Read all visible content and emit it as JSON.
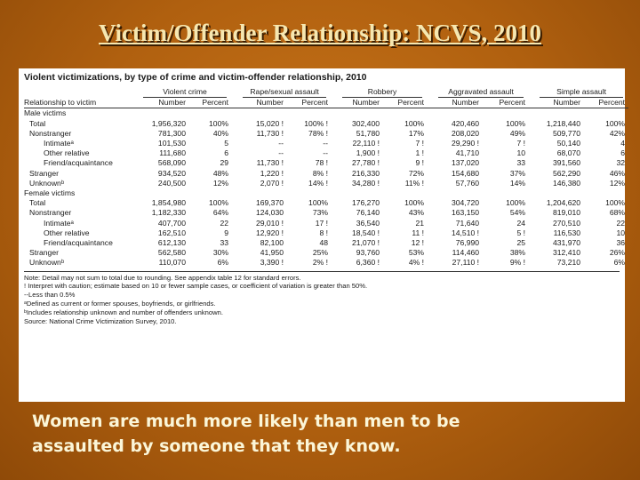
{
  "slide": {
    "title": "Victim/Offender Relationship: NCVS, 2010",
    "caption_line1": "Women are much more likely than men to be",
    "caption_line2": "assaulted by someone that they know."
  },
  "table": {
    "title": "Violent victimizations, by type of crime and victim-offender relationship, 2010",
    "groups": [
      "Violent crime",
      "Rape/sexual assault",
      "Robbery",
      "Aggravated assault",
      "Simple assault"
    ],
    "rel_header": "Relationship to victim",
    "number_label": "Number",
    "percent_label": "Percent",
    "male_label": "Male victims",
    "female_label": "Female victims",
    "male_rows": [
      {
        "label": "Total",
        "indent": 1,
        "cells": [
          "1,956,320",
          "100%",
          "15,020 !",
          "100% !",
          "302,400",
          "100%",
          "420,460",
          "100%",
          "1,218,440",
          "100%"
        ]
      },
      {
        "label": "Nonstranger",
        "indent": 1,
        "cells": [
          "781,300",
          "40%",
          "11,730 !",
          "78% !",
          "51,780",
          "17%",
          "208,020",
          "49%",
          "509,770",
          "42%"
        ]
      },
      {
        "label": "Intimateᵃ",
        "indent": 2,
        "cells": [
          "101,530",
          "5",
          "--",
          "--",
          "22,110 !",
          "7 !",
          "29,290 !",
          "7 !",
          "50,140",
          "4"
        ]
      },
      {
        "label": "Other relative",
        "indent": 2,
        "cells": [
          "111,680",
          "6",
          "--",
          "--",
          "1,900 !",
          "1 !",
          "41,710",
          "10",
          "68,070",
          "6"
        ]
      },
      {
        "label": "Friend/acquaintance",
        "indent": 2,
        "cells": [
          "568,090",
          "29",
          "11,730 !",
          "78 !",
          "27,780 !",
          "9 !",
          "137,020",
          "33",
          "391,560",
          "32"
        ]
      },
      {
        "label": "Stranger",
        "indent": 1,
        "cells": [
          "934,520",
          "48%",
          "1,220 !",
          "8% !",
          "216,330",
          "72%",
          "154,680",
          "37%",
          "562,290",
          "46%"
        ]
      },
      {
        "label": "Unknownᵇ",
        "indent": 1,
        "cells": [
          "240,500",
          "12%",
          "2,070 !",
          "14% !",
          "34,280 !",
          "11% !",
          "57,760",
          "14%",
          "146,380",
          "12%"
        ]
      }
    ],
    "female_rows": [
      {
        "label": "Total",
        "indent": 1,
        "cells": [
          "1,854,980",
          "100%",
          "169,370",
          "100%",
          "176,270",
          "100%",
          "304,720",
          "100%",
          "1,204,620",
          "100%"
        ]
      },
      {
        "label": "Nonstranger",
        "indent": 1,
        "cells": [
          "1,182,330",
          "64%",
          "124,030",
          "73%",
          "76,140",
          "43%",
          "163,150",
          "54%",
          "819,010",
          "68%"
        ]
      },
      {
        "label": "Intimateᵃ",
        "indent": 2,
        "cells": [
          "407,700",
          "22",
          "29,010 !",
          "17 !",
          "36,540",
          "21",
          "71,640",
          "24",
          "270,510",
          "22"
        ]
      },
      {
        "label": "Other relative",
        "indent": 2,
        "cells": [
          "162,510",
          "9",
          "12,920 !",
          "8 !",
          "18,540 !",
          "11 !",
          "14,510 !",
          "5 !",
          "116,530",
          "10"
        ]
      },
      {
        "label": "Friend/acquaintance",
        "indent": 2,
        "cells": [
          "612,130",
          "33",
          "82,100",
          "48",
          "21,070 !",
          "12 !",
          "76,990",
          "25",
          "431,970",
          "36"
        ]
      },
      {
        "label": "Stranger",
        "indent": 1,
        "cells": [
          "562,580",
          "30%",
          "41,950",
          "25%",
          "93,760",
          "53%",
          "114,460",
          "38%",
          "312,410",
          "26%"
        ]
      },
      {
        "label": "Unknownᵇ",
        "indent": 1,
        "cells": [
          "110,070",
          "6%",
          "3,390 !",
          "2% !",
          "6,360 !",
          "4% !",
          "27,110 !",
          "9% !",
          "73,210",
          "6%"
        ]
      }
    ],
    "notes": [
      "Note: Detail may not sum to total due to rounding. See appendix table 12 for standard errors.",
      "! Interpret with caution; estimate based on 10 or fewer sample cases, or coefficient of variation is greater than 50%.",
      "--Less than 0.5%",
      "ᵃDefined as current or former spouses, boyfriends, or girlfriends.",
      "ᵇIncludes relationship unknown and number of offenders unknown.",
      "Source: National Crime Victimization Survey, 2010."
    ]
  }
}
